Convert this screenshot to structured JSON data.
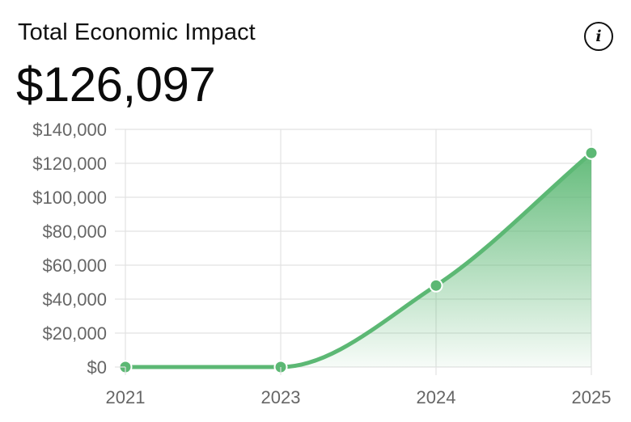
{
  "card": {
    "title": "Total Economic Impact",
    "value": "$126,097",
    "info_icon": "info-icon"
  },
  "colors": {
    "line": "#5cb874",
    "point": "#5cb874",
    "grid": "#e2e2e2",
    "tick_text": "#666666"
  },
  "chart_data": {
    "type": "area",
    "categories": [
      "2021",
      "2023",
      "2024",
      "2025"
    ],
    "series": [
      {
        "values": [
          0,
          0,
          48000,
          126097
        ]
      }
    ],
    "ylim": [
      0,
      140000
    ],
    "yticks": [
      "$0",
      "$20,000",
      "$40,000",
      "$60,000",
      "$80,000",
      "$100,000",
      "$120,000",
      "$140,000"
    ],
    "ytick_values": [
      0,
      20000,
      40000,
      60000,
      80000,
      100000,
      120000,
      140000
    ],
    "grid": true,
    "legend": "none",
    "title": "",
    "xlabel": "",
    "ylabel": ""
  }
}
